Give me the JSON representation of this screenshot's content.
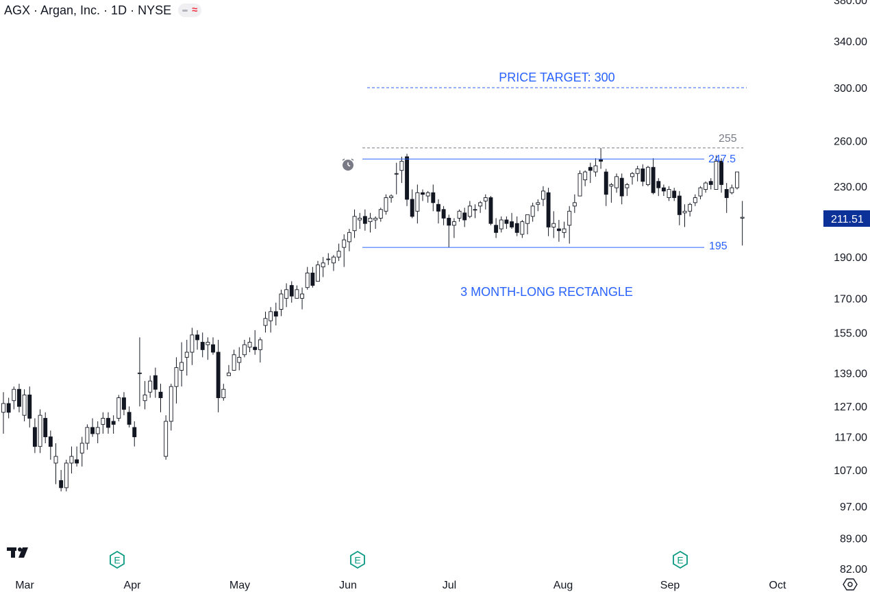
{
  "header": {
    "title": "AGX · Argan, Inc. · 1D · NYSE",
    "indicator_icon": "wave-icon",
    "indicator_color": "#f23645"
  },
  "colors": {
    "up_body": "#ffffff",
    "down_body": "#131722",
    "wick": "#131722",
    "annotation": "#2962ff",
    "level_255": "#787b86",
    "price_badge_bg": "#0c3299",
    "earnings": "#089981",
    "axis_text": "#131722"
  },
  "chart_data": {
    "type": "candlestick",
    "y_scale": "log",
    "ylim": [
      82,
      380
    ],
    "y_ticks": [
      "380.00",
      "340.00",
      "300.00",
      "260.00",
      "230.00",
      "190.00",
      "170.00",
      "155.00",
      "139.00",
      "127.00",
      "117.00",
      "107.00",
      "97.00",
      "89.00",
      "82.00"
    ],
    "x_ticks": [
      "Mar",
      "Apr",
      "May",
      "Jun",
      "Jul",
      "Aug",
      "Sep",
      "Oct"
    ],
    "last_price": "211.51",
    "earnings_marker": "E",
    "annotations": {
      "price_target": "PRICE TARGET: 300",
      "rectangle": "3 MONTH-LONG RECTANGLE",
      "level_255": "255",
      "level_247": "247.5",
      "level_195": "195"
    },
    "ohlc": [
      [
        125,
        132,
        118,
        128
      ],
      [
        128,
        130,
        123,
        125
      ],
      [
        129,
        134,
        126,
        133
      ],
      [
        133,
        135,
        125,
        127
      ],
      [
        124,
        133,
        122,
        131
      ],
      [
        131,
        134,
        120,
        123
      ],
      [
        120,
        123,
        112,
        114
      ],
      [
        114,
        126,
        112,
        124
      ],
      [
        123,
        125,
        115,
        117
      ],
      [
        117,
        119,
        110,
        114
      ],
      [
        109,
        115,
        103,
        111
      ],
      [
        104,
        107,
        101,
        102
      ],
      [
        102,
        110,
        101,
        109
      ],
      [
        109,
        114,
        106,
        111
      ],
      [
        110,
        114,
        108,
        109
      ],
      [
        112,
        117,
        108,
        115
      ],
      [
        115,
        121,
        113,
        120
      ],
      [
        120,
        123,
        117,
        118
      ],
      [
        118,
        122,
        115,
        120
      ],
      [
        121,
        125,
        118,
        123
      ],
      [
        123,
        125,
        118,
        120
      ],
      [
        122,
        124,
        118,
        121
      ],
      [
        123,
        131,
        122,
        130
      ],
      [
        130,
        132,
        124,
        126
      ],
      [
        125,
        127,
        120,
        121
      ],
      [
        120,
        122,
        114,
        117
      ],
      [
        139,
        153,
        127,
        139
      ],
      [
        129,
        136,
        126,
        131
      ],
      [
        132,
        138,
        130,
        136
      ],
      [
        138,
        141,
        130,
        133
      ],
      [
        132,
        135,
        125,
        130
      ],
      [
        111,
        124,
        110,
        122
      ],
      [
        122,
        135,
        119,
        134
      ],
      [
        134,
        145,
        128,
        141
      ],
      [
        140,
        151,
        134,
        143
      ],
      [
        145,
        152,
        138,
        147
      ],
      [
        147,
        157,
        142,
        154
      ],
      [
        154,
        156,
        148,
        152
      ],
      [
        151,
        155,
        145,
        148
      ],
      [
        150,
        153,
        144,
        151
      ],
      [
        150,
        153,
        146,
        147
      ],
      [
        147,
        152,
        125,
        130
      ],
      [
        130,
        135,
        129,
        133
      ],
      [
        138,
        142,
        138,
        139
      ],
      [
        140,
        148,
        140,
        146
      ],
      [
        143,
        149,
        140,
        145
      ],
      [
        146,
        152,
        145,
        150
      ],
      [
        149,
        153,
        147,
        151
      ],
      [
        149,
        156,
        146,
        148
      ],
      [
        148,
        153,
        143,
        152
      ],
      [
        158,
        164,
        155,
        161
      ],
      [
        160,
        166,
        155,
        164
      ],
      [
        164,
        168,
        158,
        162
      ],
      [
        165,
        174,
        162,
        172
      ],
      [
        170,
        177,
        166,
        174
      ],
      [
        176,
        178,
        168,
        171
      ],
      [
        170,
        176,
        170,
        174
      ],
      [
        170,
        175,
        165,
        172
      ],
      [
        175,
        185,
        174,
        182
      ],
      [
        182,
        185,
        175,
        176
      ],
      [
        178,
        188,
        178,
        186
      ],
      [
        185,
        190,
        180,
        187
      ],
      [
        189,
        192,
        186,
        189
      ],
      [
        187,
        191,
        183,
        190
      ],
      [
        190,
        197,
        188,
        193
      ],
      [
        195,
        202,
        185,
        199
      ],
      [
        198,
        205,
        193,
        203
      ],
      [
        204,
        216,
        200,
        212
      ],
      [
        210,
        214,
        205,
        211
      ],
      [
        212,
        216,
        204,
        208
      ],
      [
        209,
        214,
        203,
        211
      ],
      [
        210,
        212,
        205,
        211
      ],
      [
        211,
        217,
        209,
        216
      ],
      [
        215,
        225,
        213,
        223
      ],
      [
        223,
        225,
        220,
        224
      ],
      [
        238,
        245,
        225,
        238
      ],
      [
        240,
        249,
        232,
        246
      ],
      [
        249,
        251,
        218,
        222
      ],
      [
        222,
        228,
        211,
        212
      ],
      [
        215,
        231,
        208,
        226
      ],
      [
        226,
        228,
        221,
        225
      ],
      [
        224,
        227,
        220,
        226
      ],
      [
        226,
        231,
        215,
        220
      ],
      [
        219,
        222,
        208,
        215
      ],
      [
        216,
        218,
        207,
        211
      ],
      [
        211,
        213,
        195,
        207
      ],
      [
        207,
        211,
        200,
        209
      ],
      [
        211,
        216,
        209,
        215
      ],
      [
        214,
        217,
        206,
        210
      ],
      [
        212,
        221,
        211,
        218
      ],
      [
        216,
        219,
        211,
        216
      ],
      [
        218,
        221,
        214,
        220
      ],
      [
        221,
        225,
        216,
        223
      ],
      [
        223,
        224,
        207,
        208
      ],
      [
        207,
        211,
        200,
        203
      ],
      [
        205,
        212,
        203,
        210
      ],
      [
        210,
        212,
        205,
        208
      ],
      [
        209,
        214,
        205,
        206
      ],
      [
        208,
        212,
        201,
        203
      ],
      [
        202,
        210,
        200,
        209
      ],
      [
        208,
        213,
        202,
        213
      ],
      [
        212,
        220,
        209,
        218
      ],
      [
        219,
        222,
        215,
        220
      ],
      [
        222,
        230,
        218,
        227
      ],
      [
        226,
        229,
        201,
        206
      ],
      [
        206,
        215,
        200,
        208
      ],
      [
        205,
        210,
        198,
        204
      ],
      [
        203,
        209,
        200,
        205
      ],
      [
        207,
        218,
        197,
        215
      ],
      [
        218,
        225,
        214,
        220
      ],
      [
        224,
        240,
        224,
        238
      ],
      [
        234,
        240,
        230,
        239
      ],
      [
        242,
        245,
        232,
        240
      ],
      [
        239,
        248,
        236,
        243
      ],
      [
        247,
        255,
        241,
        246
      ],
      [
        239,
        241,
        218,
        225
      ],
      [
        230,
        232,
        220,
        231
      ],
      [
        229,
        238,
        226,
        236
      ],
      [
        235,
        238,
        219,
        224
      ],
      [
        229,
        232,
        224,
        231
      ],
      [
        236,
        239,
        231,
        238
      ],
      [
        238,
        243,
        233,
        241
      ],
      [
        241,
        244,
        230,
        233
      ],
      [
        231,
        243,
        230,
        242
      ],
      [
        242,
        248,
        225,
        226
      ],
      [
        233,
        235,
        224,
        229
      ],
      [
        229,
        231,
        224,
        227
      ],
      [
        223,
        230,
        221,
        228
      ],
      [
        227,
        229,
        221,
        223
      ],
      [
        224,
        227,
        207,
        213
      ],
      [
        214,
        219,
        206,
        215
      ],
      [
        215,
        220,
        212,
        219
      ],
      [
        220,
        225,
        218,
        223
      ],
      [
        224,
        230,
        222,
        229
      ],
      [
        228,
        233,
        226,
        232
      ],
      [
        233,
        235,
        228,
        231
      ],
      [
        228,
        250,
        229,
        246
      ],
      [
        246,
        248,
        226,
        231
      ],
      [
        228,
        232,
        214,
        223
      ],
      [
        226,
        231,
        225,
        229
      ],
      [
        229,
        238,
        228,
        239
      ],
      [
        211,
        221,
        196,
        211.51
      ]
    ]
  }
}
